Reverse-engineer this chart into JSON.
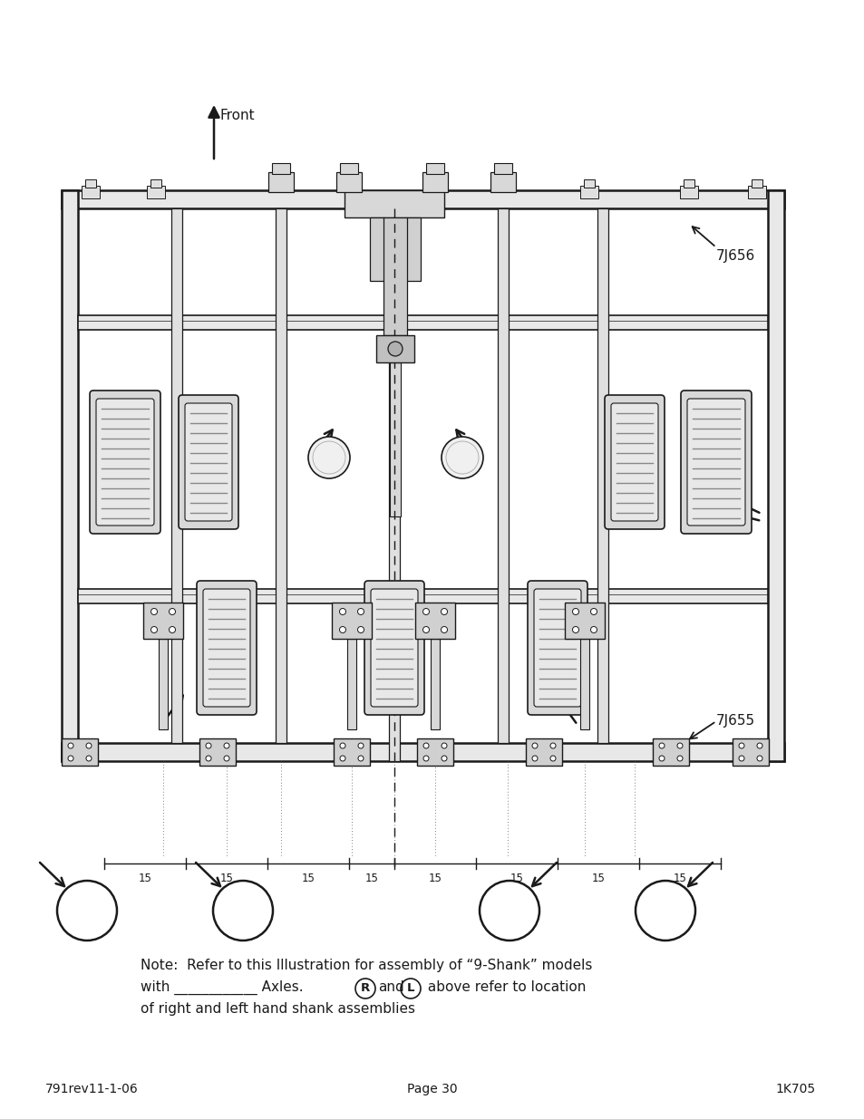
{
  "page_background": "#ffffff",
  "title_text": "Front",
  "label_7J656": "7J656",
  "label_7J655": "7J655",
  "note_line1": "Note:  Refer to this Illustration for assembly of “9-Shank” models",
  "note_line2": "with ____________ Axles.",
  "note_line3": "of right and left hand shank assemblies",
  "note_R": "R",
  "note_L": "L",
  "note_above": " above refer to location",
  "footer_left": "791rev11-1-06",
  "footer_center": "Page 30",
  "footer_right": "1K705",
  "spacing_labels": [
    "15",
    "15",
    "15",
    "15",
    "15",
    "15",
    "15",
    "15"
  ],
  "fig_width": 9.54,
  "fig_height": 12.35,
  "dpi": 100
}
